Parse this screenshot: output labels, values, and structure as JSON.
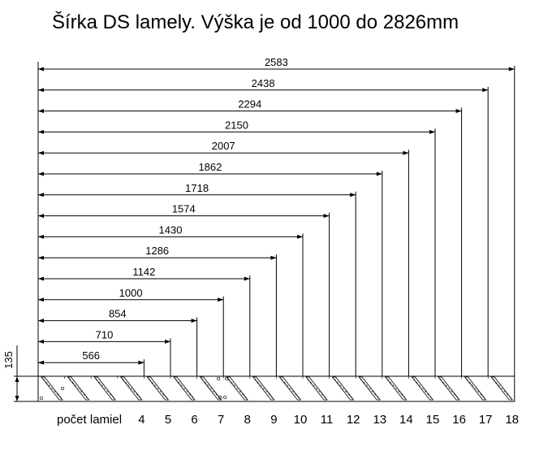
{
  "title": "Šírka DS lamely. Výška je od 1000 do 2826mm",
  "lamella_label": "počet lamiel",
  "height_dimension": "135",
  "widths": [
    {
      "count": "4",
      "width": "566"
    },
    {
      "count": "5",
      "width": "710"
    },
    {
      "count": "6",
      "width": "854"
    },
    {
      "count": "7",
      "width": "1000"
    },
    {
      "count": "8",
      "width": "1142"
    },
    {
      "count": "9",
      "width": "1286"
    },
    {
      "count": "10",
      "width": "1430"
    },
    {
      "count": "11",
      "width": "1574"
    },
    {
      "count": "12",
      "width": "1718"
    },
    {
      "count": "13",
      "width": "1862"
    },
    {
      "count": "14",
      "width": "2007"
    },
    {
      "count": "15",
      "width": "2150"
    },
    {
      "count": "16",
      "width": "2294"
    },
    {
      "count": "17",
      "width": "2438"
    },
    {
      "count": "18",
      "width": "2583"
    }
  ]
}
